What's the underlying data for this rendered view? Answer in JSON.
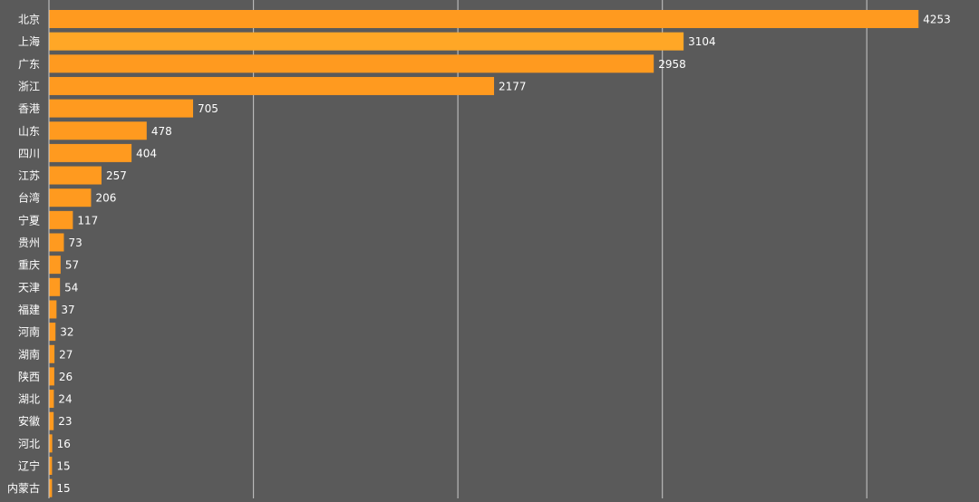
{
  "colors": {
    "background": "#5a5a5a",
    "bar": "#ff9a1f",
    "bar_highlight": "#ffa726",
    "gridline": "#b8b8b8",
    "axis_line": "#cfcfcf",
    "text": "#ffffff"
  },
  "chart_data": {
    "type": "bar",
    "orientation": "horizontal",
    "title": "",
    "xlabel": "",
    "ylabel": "",
    "categories": [
      "北京",
      "上海",
      "广东",
      "浙江",
      "香港",
      "山东",
      "四川",
      "江苏",
      "台湾",
      "宁夏",
      "贵州",
      "重庆",
      "天津",
      "福建",
      "河南",
      "湖南",
      "陕西",
      "湖北",
      "安徽",
      "河北",
      "辽宁",
      "内蒙古"
    ],
    "values": [
      4253,
      3104,
      2958,
      2177,
      705,
      478,
      404,
      257,
      206,
      117,
      73,
      57,
      54,
      37,
      32,
      27,
      26,
      24,
      23,
      16,
      15,
      15
    ],
    "xlim": [
      0,
      4500
    ],
    "grid": true,
    "gridline_values": [
      1000,
      2000,
      3000,
      4000
    ],
    "data_labels": true,
    "legend": "none"
  }
}
